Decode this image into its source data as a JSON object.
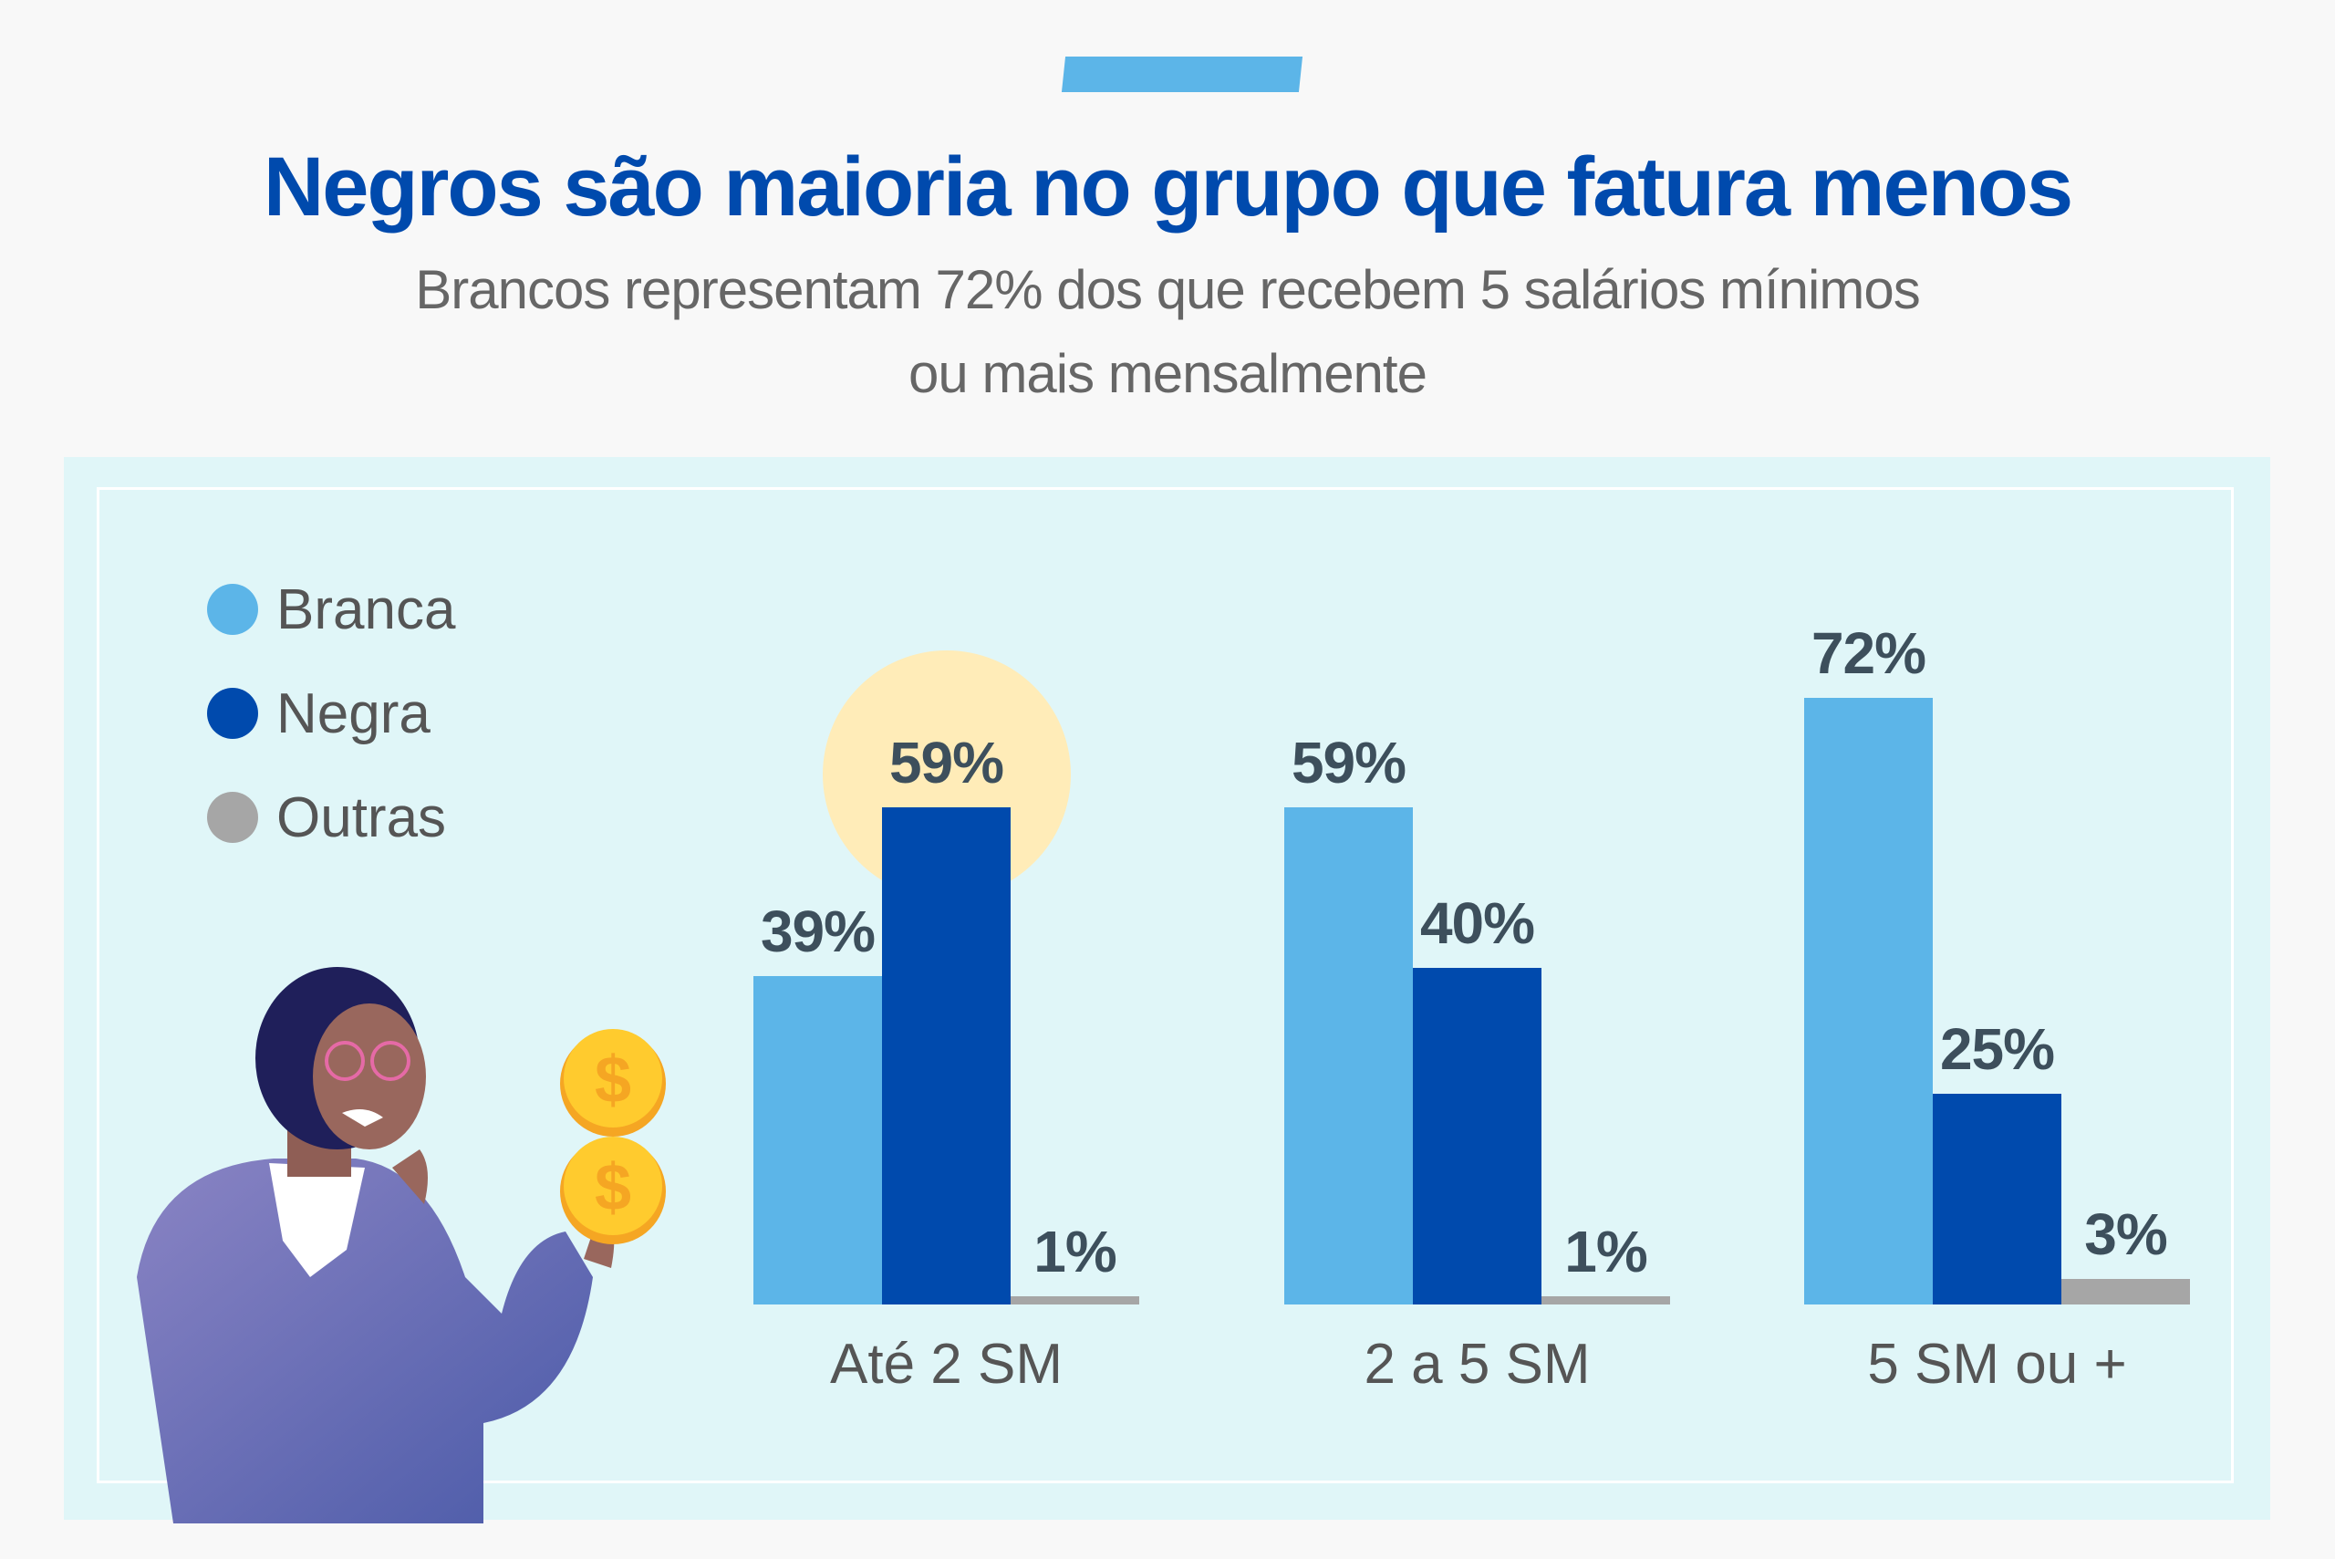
{
  "title": "Negros são maioria no grupo que fatura menos",
  "subtitle_lines": [
    "Brancos representam 72% dos que recebem 5 salários mínimos",
    "ou mais mensalmente"
  ],
  "colors": {
    "Branca": "#5cb5e8",
    "Negra": "#004aad",
    "Outras": "#a6a6a6",
    "title": "#004aad",
    "highlight": "#ffecb8"
  },
  "chart_data": {
    "type": "bar",
    "categories": [
      "Até 2 SM",
      "2 a 5 SM",
      "5 SM ou +"
    ],
    "series": [
      {
        "name": "Branca",
        "values": [
          39,
          59,
          72
        ],
        "labels": [
          "39%",
          "59%",
          "72%"
        ]
      },
      {
        "name": "Negra",
        "values": [
          59,
          40,
          25
        ],
        "labels": [
          "59%",
          "40%",
          "25%"
        ]
      },
      {
        "name": "Outras",
        "values": [
          1,
          1,
          3
        ],
        "labels": [
          "1%",
          "1%",
          "3%"
        ]
      }
    ],
    "unit": "%",
    "legend_position": "top-left",
    "highlighted": {
      "category": "Até 2 SM",
      "series": "Negra"
    },
    "grid": false,
    "ylim": [
      0,
      100
    ]
  }
}
